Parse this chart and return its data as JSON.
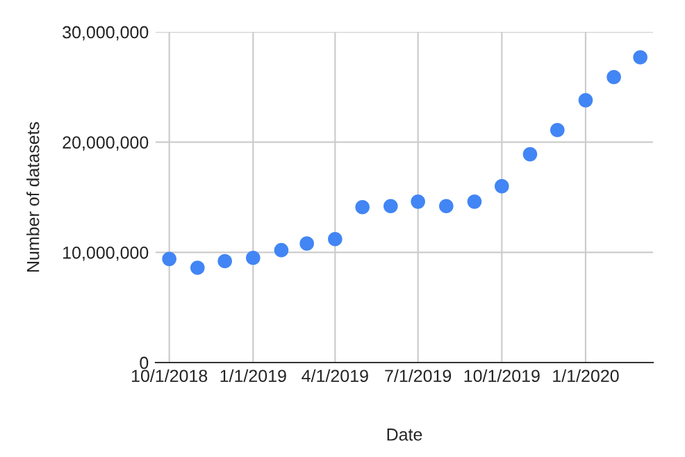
{
  "chart_data": {
    "type": "scatter",
    "xlabel": "Date",
    "ylabel": "Number of datasets",
    "x": [
      "2018-10-01",
      "2018-11-01",
      "2018-12-01",
      "2019-01-01",
      "2019-02-01",
      "2019-03-01",
      "2019-04-01",
      "2019-05-01",
      "2019-06-01",
      "2019-07-01",
      "2019-08-01",
      "2019-09-01",
      "2019-10-01",
      "2019-11-01",
      "2019-12-01",
      "2020-01-01",
      "2020-02-01",
      "2020-03-01"
    ],
    "series": [
      {
        "color": "#4285f4",
        "values": [
          9400000,
          8600000,
          9200000,
          9500000,
          10200000,
          10800000,
          11200000,
          14100000,
          14200000,
          14600000,
          14200000,
          14600000,
          16000000,
          18900000,
          21100000,
          23800000,
          25900000,
          27700000
        ]
      }
    ],
    "xlim": [
      "2018-09-16",
      "2020-03-15"
    ],
    "xticks": [
      {
        "value": "2018-10-01",
        "label": "10/1/2018"
      },
      {
        "value": "2019-01-01",
        "label": "1/1/2019"
      },
      {
        "value": "2019-04-01",
        "label": "4/1/2019"
      },
      {
        "value": "2019-07-01",
        "label": "7/1/2019"
      },
      {
        "value": "2019-10-01",
        "label": "10/1/2019"
      },
      {
        "value": "2020-01-01",
        "label": "1/1/2020"
      }
    ],
    "ylim": [
      0,
      30000000
    ],
    "yticks": [
      {
        "value": 0,
        "label": "0"
      },
      {
        "value": 10000000,
        "label": "10,000,000"
      },
      {
        "value": 20000000,
        "label": "20,000,000"
      },
      {
        "value": 30000000,
        "label": "30,000,000"
      }
    ],
    "grid": true,
    "marker": "circle",
    "legend": false
  }
}
